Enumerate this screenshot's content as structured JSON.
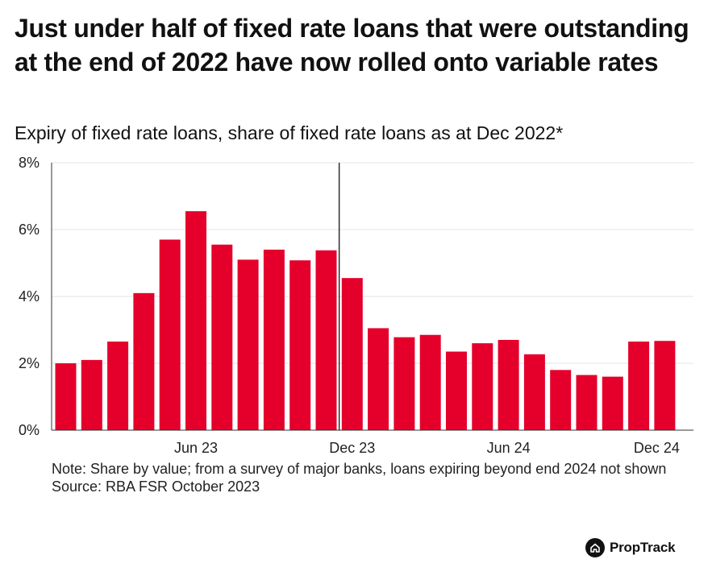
{
  "header": {
    "title": "Just under half of fixed rate loans that were outstanding at the end of 2022 have now rolled onto variable rates",
    "subtitle": "Expiry of fixed rate loans, share of fixed rate loans as at Dec 2022*"
  },
  "chart_data": {
    "type": "bar",
    "categories": [
      "Jan 23",
      "Feb 23",
      "Mar 23",
      "Apr 23",
      "May 23",
      "Jun 23",
      "Jul 23",
      "Aug 23",
      "Sep 23",
      "Oct 23",
      "Nov 23",
      "Dec 23",
      "Jan 24",
      "Feb 24",
      "Mar 24",
      "Apr 24",
      "May 24",
      "Jun 24",
      "Jul 24",
      "Aug 24",
      "Sep 24",
      "Oct 24",
      "Nov 24",
      "Dec 24"
    ],
    "values": [
      2.0,
      2.1,
      2.65,
      4.1,
      5.7,
      6.55,
      5.55,
      5.1,
      5.4,
      5.08,
      5.38,
      4.55,
      3.05,
      2.78,
      2.85,
      2.35,
      2.6,
      2.7,
      2.27,
      1.8,
      1.65,
      1.6,
      2.65,
      2.67
    ],
    "x_tick_labels": [
      {
        "label": "Jun 23",
        "category": "Jun 23"
      },
      {
        "label": "Dec 23",
        "category": "Dec 23"
      },
      {
        "label": "Jun 24",
        "category": "Jun 24"
      },
      {
        "label": "Dec 24",
        "category": "Dec 24"
      }
    ],
    "y_ticks": [
      0,
      2,
      4,
      6,
      8
    ],
    "y_tick_labels": [
      "0%",
      "2%",
      "4%",
      "6%",
      "8%"
    ],
    "ylim": [
      0,
      8
    ],
    "grid": true,
    "reference_line": {
      "between": [
        "Nov 23",
        "Dec 23"
      ]
    },
    "bar_color": "#e4002b",
    "xlabel": "",
    "ylabel": ""
  },
  "notes": {
    "note": "Note: Share by value; from a survey of major banks, loans expiring beyond end 2024 not shown",
    "source": "Source: RBA FSR October 2023"
  },
  "brand": {
    "name": "PropTrack",
    "icon": "house-icon"
  }
}
